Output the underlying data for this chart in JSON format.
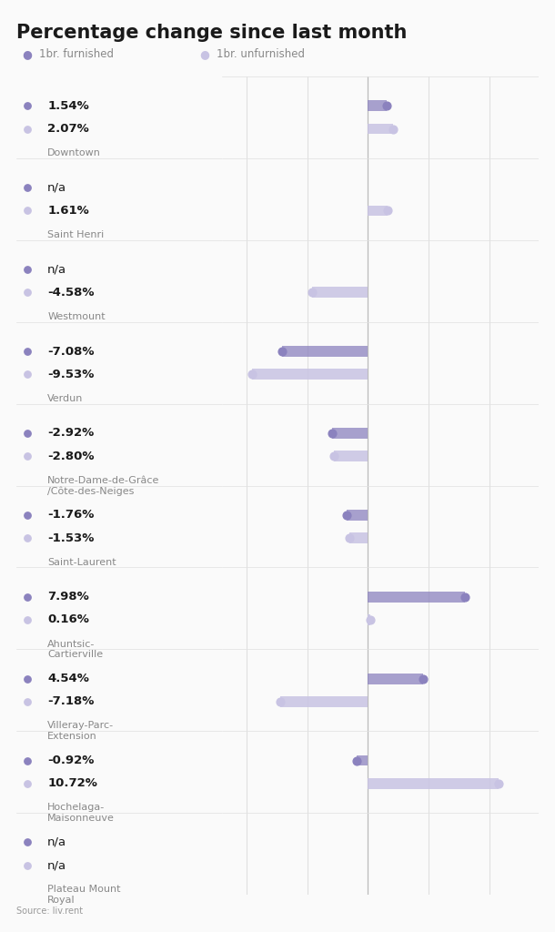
{
  "title": "Percentage change since last month",
  "legend": [
    "1br. furnished",
    "1br. unfurnished"
  ],
  "source": "Source: liv.rent",
  "neighborhoods": [
    {
      "name": "Downtown",
      "furnished": 1.54,
      "unfurnished": 2.07,
      "furnished_na": false,
      "unfurnished_na": false
    },
    {
      "name": "Saint Henri",
      "furnished": null,
      "unfurnished": 1.61,
      "furnished_na": true,
      "unfurnished_na": false
    },
    {
      "name": "Westmount",
      "furnished": null,
      "unfurnished": -4.58,
      "furnished_na": true,
      "unfurnished_na": false
    },
    {
      "name": "Verdun",
      "furnished": -7.08,
      "unfurnished": -9.53,
      "furnished_na": false,
      "unfurnished_na": false
    },
    {
      "name": "Notre-Dame-de-Grâce\n/Côte-des-Neiges",
      "furnished": -2.92,
      "unfurnished": -2.8,
      "furnished_na": false,
      "unfurnished_na": false
    },
    {
      "name": "Saint-Laurent",
      "furnished": -1.76,
      "unfurnished": -1.53,
      "furnished_na": false,
      "unfurnished_na": false
    },
    {
      "name": "Ahuntsic-\nCartierville",
      "furnished": 7.98,
      "unfurnished": 0.16,
      "furnished_na": false,
      "unfurnished_na": false
    },
    {
      "name": "Villeray-Parc-\nExtension",
      "furnished": 4.54,
      "unfurnished": -7.18,
      "furnished_na": false,
      "unfurnished_na": false
    },
    {
      "name": "Hochelaga-\nMaisonneuve",
      "furnished": -0.92,
      "unfurnished": 10.72,
      "furnished_na": false,
      "unfurnished_na": false
    },
    {
      "name": "Plateau Mount\nRoyal",
      "furnished": null,
      "unfurnished": null,
      "furnished_na": true,
      "unfurnished_na": true
    }
  ],
  "colors": {
    "furnished": "#8B82BE",
    "unfurnished": "#C8C3E3",
    "background": "#FAFAFA",
    "grid": "#E0E0E0",
    "text_dark": "#1a1a1a",
    "text_value_bold": "#1a1a1a",
    "text_label": "#888888",
    "source_text": "#999999",
    "vline": "#BBBBBB"
  },
  "xlim": [
    -12,
    14
  ],
  "title_fontsize": 15,
  "legend_fontsize": 8.5,
  "value_fontsize": 9.5,
  "neighborhood_fontsize": 8,
  "source_fontsize": 7
}
